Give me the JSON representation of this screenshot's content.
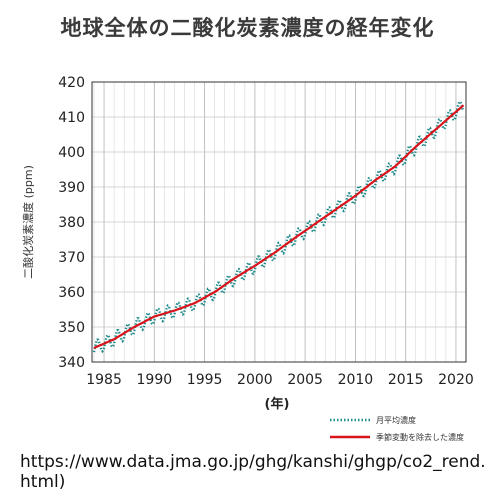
{
  "page_title": "地球全体の二酸化炭素濃度の経年変化",
  "source_url": "https://www.data.jma.go.jp/ghg/kanshi/ghgp/co2_rend.html)",
  "chart_data": {
    "type": "line",
    "title": "地球全体の二酸化炭素濃度の経年変化",
    "xlabel": "(年)",
    "ylabel": "二酸化炭素濃度 (ppm)",
    "xlim": [
      1983.8,
      2021.0
    ],
    "ylim": [
      340,
      420
    ],
    "xticks": [
      1985,
      1990,
      1995,
      2000,
      2005,
      2010,
      2015,
      2020
    ],
    "yticks": [
      340,
      350,
      360,
      370,
      380,
      390,
      400,
      410,
      420
    ],
    "grid": true,
    "legend_position": "bottom-right",
    "series": [
      {
        "name": "月平均濃度",
        "style": "dotted",
        "color": "#1f8a8a",
        "seasonal_amplitude_ppm": 4.0
      },
      {
        "name": "季節変動を除去した濃度",
        "style": "solid",
        "color": "#d9141b",
        "x": [
          1984,
          1986,
          1988,
          1990,
          1992,
          1994,
          1996,
          1998,
          2000,
          2002,
          2004,
          2006,
          2008,
          2010,
          2012,
          2014,
          2016,
          2018,
          2020,
          2020.8
        ],
        "values": [
          344.0,
          346.5,
          350.0,
          353.0,
          354.7,
          356.8,
          360.0,
          364.0,
          367.5,
          371.3,
          375.5,
          379.5,
          383.5,
          387.5,
          392.0,
          396.0,
          401.5,
          406.5,
          411.5,
          413.5
        ]
      }
    ]
  }
}
